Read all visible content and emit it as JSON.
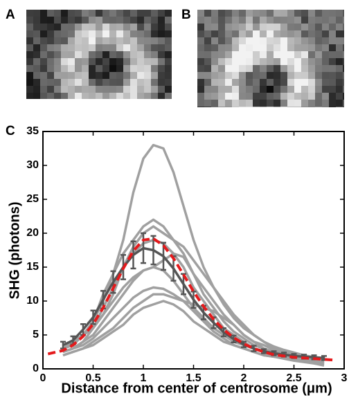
{
  "panel_labels": [
    "A",
    "B",
    "C"
  ],
  "chart_data": {
    "type": "line",
    "xlabel": "Distance from center of centrosome (μm)",
    "ylabel": "SHG (photons)",
    "xlim": [
      0,
      3
    ],
    "xticks": [
      0,
      0.5,
      1,
      1.5,
      2,
      2.5,
      3
    ],
    "ylim": [
      0,
      35
    ],
    "yticks": [
      0,
      5,
      10,
      15,
      20,
      25,
      30,
      35
    ],
    "x": [
      0.2,
      0.3,
      0.4,
      0.5,
      0.6,
      0.7,
      0.8,
      0.9,
      1.0,
      1.1,
      1.2,
      1.3,
      1.4,
      1.5,
      1.6,
      1.7,
      1.8,
      1.9,
      2.0,
      2.1,
      2.2,
      2.3,
      2.4,
      2.5,
      2.6,
      2.7,
      2.8
    ],
    "series": [
      {
        "color": "#a0a0a0",
        "values": [
          3,
          4,
          5,
          7,
          10,
          14,
          19,
          26,
          31,
          33,
          32.5,
          29,
          24,
          19,
          15,
          12,
          9.5,
          7.5,
          6,
          5,
          4,
          3.3,
          2.8,
          2.4,
          2,
          1.6,
          1.3
        ]
      },
      {
        "color": "#a0a0a0",
        "values": [
          3,
          3.5,
          5,
          7,
          11,
          14,
          17,
          19,
          21,
          22,
          21,
          19,
          17,
          14,
          11,
          9,
          7,
          5.5,
          4.5,
          3.5,
          3,
          2.5,
          2.2,
          2,
          1.8,
          1.5,
          1.2
        ]
      },
      {
        "color": "#a0a0a0",
        "values": [
          2.5,
          3,
          4,
          6,
          8,
          11,
          15,
          18,
          20,
          21,
          20,
          19,
          18,
          16,
          14,
          12,
          10,
          8,
          6.5,
          5,
          4,
          3,
          2.5,
          2.2,
          2,
          1.7,
          1.3
        ]
      },
      {
        "color": "#a0a0a0",
        "values": [
          3,
          4,
          5,
          6,
          9,
          12,
          15,
          17,
          18.5,
          19,
          18.5,
          17,
          15,
          12,
          10,
          8,
          6,
          5,
          4,
          3,
          2.5,
          2,
          2,
          1.8,
          1.7,
          1.5,
          1.2
        ]
      },
      {
        "color": "#a0a0a0",
        "values": [
          2.5,
          3,
          4,
          5,
          7,
          9,
          11,
          13,
          14.5,
          15,
          14.5,
          13,
          11,
          9,
          7.5,
          6,
          5,
          4,
          3.5,
          3,
          2.5,
          2,
          1.8,
          1.6,
          1.4,
          1,
          0.8
        ]
      },
      {
        "color": "#a0a0a0",
        "values": [
          2.5,
          3,
          3.5,
          4.5,
          6,
          7.5,
          9,
          10.5,
          11.5,
          12,
          11.8,
          11,
          10,
          8.5,
          7,
          5.5,
          4.5,
          3.5,
          3,
          2.5,
          2,
          1.8,
          1.6,
          1.4,
          1.2,
          1,
          0.7
        ]
      },
      {
        "color": "#a0a0a0",
        "values": [
          2,
          2.5,
          3,
          4,
          5,
          6,
          7.5,
          9,
          10,
          11,
          11,
          10.5,
          10,
          9.5,
          9,
          8.5,
          7.5,
          6.5,
          5,
          4,
          3.5,
          2.8,
          2.2,
          1.8,
          1.5,
          1.2,
          0.8
        ]
      },
      {
        "color": "#a0a0a0",
        "values": [
          3,
          4,
          5,
          6,
          8,
          10,
          12,
          13.5,
          14.5,
          15,
          16,
          17,
          16.5,
          14,
          12,
          10,
          8,
          6.5,
          5,
          4,
          3,
          2.5,
          2,
          1.8,
          1.5,
          1.2,
          1
        ]
      },
      {
        "color": "#a0a0a0",
        "values": [
          2,
          2.5,
          3,
          3.5,
          4.5,
          5.5,
          6.5,
          8,
          9,
          9.5,
          10,
          9.5,
          8.5,
          7,
          6,
          5,
          4,
          3.5,
          3,
          2.5,
          2,
          1.8,
          1.5,
          1.2,
          1,
          0.8,
          0.5
        ]
      },
      {
        "color": "#555555",
        "values": [
          3.5,
          4.2,
          5.8,
          7.6,
          10.2,
          12.8,
          15,
          16.8,
          17.8,
          17.5,
          16.6,
          14.8,
          12.5,
          10.2,
          8.3,
          6.8,
          5.4,
          4.4,
          3.6,
          3,
          2.6,
          2.3,
          2.1,
          1.9,
          1.8,
          1.7,
          1.6
        ],
        "errors": [
          0.5,
          0.6,
          0.8,
          1,
          1.3,
          1.6,
          1.8,
          2,
          2.2,
          2.1,
          2,
          1.8,
          1.5,
          1.2,
          1,
          0.8,
          0.6,
          0.5,
          0.4,
          0.4,
          0.3,
          0.3,
          0.3,
          0.3,
          0.3,
          0.3,
          0.3
        ]
      },
      {
        "color": "#e41a1c",
        "dashed": true,
        "x": [
          0.05,
          0.2,
          0.3,
          0.4,
          0.5,
          0.6,
          0.7,
          0.8,
          0.9,
          1.0,
          1.1,
          1.2,
          1.3,
          1.4,
          1.5,
          1.6,
          1.7,
          1.8,
          1.9,
          2.0,
          2.1,
          2.2,
          2.3,
          2.4,
          2.5,
          2.6,
          2.7,
          2.8,
          2.9
        ],
        "values": [
          2.2,
          2.7,
          3.5,
          4.8,
          6.6,
          9,
          11.9,
          14.8,
          17.4,
          19,
          19.2,
          18.2,
          16.3,
          13.9,
          11.4,
          9.2,
          7.3,
          5.8,
          4.6,
          3.7,
          3,
          2.5,
          2.1,
          1.9,
          1.7,
          1.6,
          1.5,
          1.4,
          1.3
        ]
      }
    ]
  }
}
